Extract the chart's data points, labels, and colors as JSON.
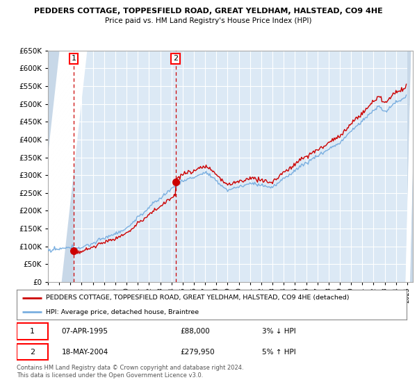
{
  "title1": "PEDDERS COTTAGE, TOPPESFIELD ROAD, GREAT YELDHAM, HALSTEAD, CO9 4HE",
  "title2": "Price paid vs. HM Land Registry's House Price Index (HPI)",
  "legend_line1": "PEDDERS COTTAGE, TOPPESFIELD ROAD, GREAT YELDHAM, HALSTEAD, CO9 4HE (detached)",
  "legend_line2": "HPI: Average price, detached house, Braintree",
  "purchase1_date": "07-APR-1995",
  "purchase1_price": "£88,000",
  "purchase1_hpi": "3% ↓ HPI",
  "purchase2_date": "18-MAY-2004",
  "purchase2_price": "£279,950",
  "purchase2_hpi": "5% ↑ HPI",
  "footer": "Contains HM Land Registry data © Crown copyright and database right 2024.\nThis data is licensed under the Open Government Licence v3.0.",
  "purchase1_year": 1995.28,
  "purchase1_value": 88000,
  "purchase2_year": 2004.38,
  "purchase2_value": 279950,
  "red_line_color": "#cc0000",
  "blue_line_color": "#7aafe0",
  "bg_color": "#dce9f5",
  "hatch_color": "#c8d8e8",
  "ylim_max": 650000,
  "year_start": 1993,
  "year_end": 2025
}
